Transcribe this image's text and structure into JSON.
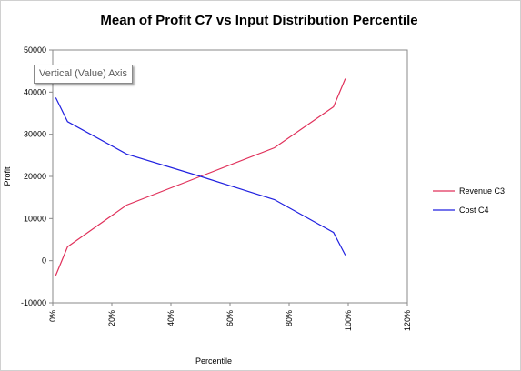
{
  "chart_data": {
    "type": "line",
    "title": "Mean of Profit C7 vs Input Distribution Percentile",
    "xlabel": "Percentile",
    "ylabel": "Profit",
    "xlim": [
      0,
      120
    ],
    "ylim": [
      -10000,
      50000
    ],
    "x_ticks": [
      0,
      20,
      40,
      60,
      80,
      100,
      120
    ],
    "x_tick_labels": [
      "0%",
      "20%",
      "40%",
      "60%",
      "80%",
      "100%",
      "120%"
    ],
    "y_ticks": [
      -10000,
      0,
      10000,
      20000,
      30000,
      40000,
      50000
    ],
    "y_tick_labels": [
      "-10000",
      "0",
      "10000",
      "20000",
      "30000",
      "40000",
      "50000"
    ],
    "grid": false,
    "legend_position": "right",
    "series": [
      {
        "name": "Revenue C3",
        "color": "#e0305a",
        "x": [
          1,
          5,
          25,
          50,
          75,
          95,
          99
        ],
        "y": [
          -3500,
          3300,
          13200,
          20000,
          26800,
          36500,
          43200
        ]
      },
      {
        "name": "Cost C4",
        "color": "#2020e0",
        "x": [
          1,
          5,
          25,
          50,
          75,
          95,
          99
        ],
        "y": [
          38700,
          33000,
          25300,
          20000,
          14500,
          6700,
          1300
        ]
      }
    ]
  },
  "tooltip": {
    "text": "Vertical (Value) Axis"
  }
}
